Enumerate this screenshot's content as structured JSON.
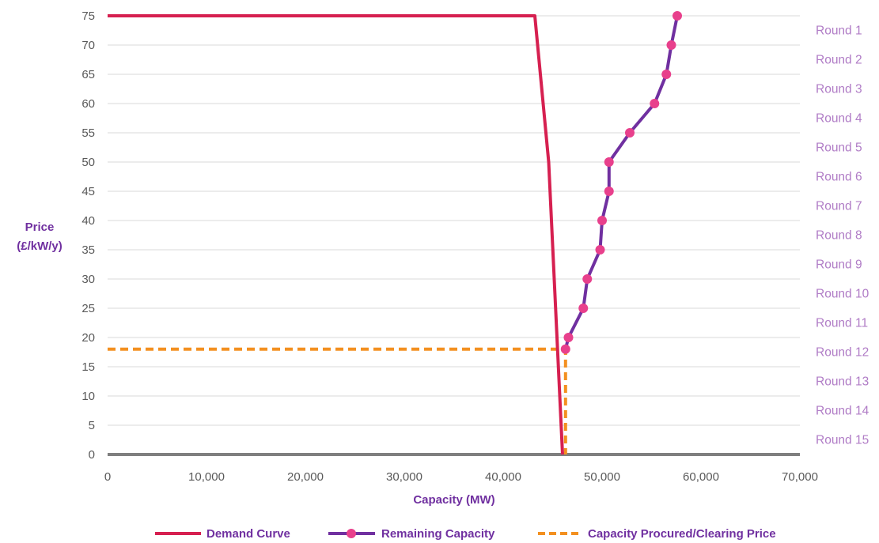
{
  "chart_data": {
    "type": "line",
    "title": "",
    "ylabel": "Price",
    "ylabel_unit": "(£/kW/y)",
    "xlabel": "Capacity (MW)",
    "xlim": [
      0,
      70000
    ],
    "ylim": [
      0,
      75
    ],
    "x_ticks": [
      0,
      10000,
      20000,
      30000,
      40000,
      50000,
      60000,
      70000
    ],
    "x_tick_labels": [
      "0",
      "10,000",
      "20,000",
      "30,000",
      "40,000",
      "50,000",
      "60,000",
      "70,000"
    ],
    "y_ticks": [
      0,
      5,
      10,
      15,
      20,
      25,
      30,
      35,
      40,
      45,
      50,
      55,
      60,
      65,
      70,
      75
    ],
    "y_tick_labels": [
      "0",
      "5",
      "10",
      "15",
      "20",
      "25",
      "30",
      "35",
      "40",
      "45",
      "50",
      "55",
      "60",
      "65",
      "70",
      "75"
    ],
    "grid": "horizontal",
    "round_labels": [
      "Round 1",
      "Round 2",
      "Round 3",
      "Round 4",
      "Round 5",
      "Round 6",
      "Round 7",
      "Round 8",
      "Round 9",
      "Round 10",
      "Round 11",
      "Round 12",
      "Round 13",
      "Round 14",
      "Round 15"
    ],
    "series": [
      {
        "name": "Demand Curve",
        "color": "#d62050",
        "style": "solid",
        "markers": false,
        "points": [
          [
            0,
            75
          ],
          [
            43200,
            75
          ],
          [
            44600,
            50
          ],
          [
            46000,
            0
          ]
        ]
      },
      {
        "name": "Remaining Capacity",
        "color": "#7030a0",
        "marker_color": "#e8408c",
        "style": "solid",
        "markers": true,
        "points": [
          [
            57600,
            75
          ],
          [
            57000,
            70
          ],
          [
            56500,
            65
          ],
          [
            55300,
            60
          ],
          [
            52800,
            55
          ],
          [
            50700,
            50
          ],
          [
            50700,
            45
          ],
          [
            50000,
            40
          ],
          [
            49800,
            35
          ],
          [
            48500,
            30
          ],
          [
            48100,
            25
          ],
          [
            46600,
            20
          ],
          [
            46300,
            18
          ]
        ]
      },
      {
        "name": "Capacity Procured/Clearing Price",
        "color": "#f39020",
        "style": "dashed",
        "markers": false,
        "points": [
          [
            0,
            18
          ],
          [
            46300,
            18
          ],
          [
            46300,
            0
          ]
        ]
      }
    ],
    "legend": "bottom"
  }
}
